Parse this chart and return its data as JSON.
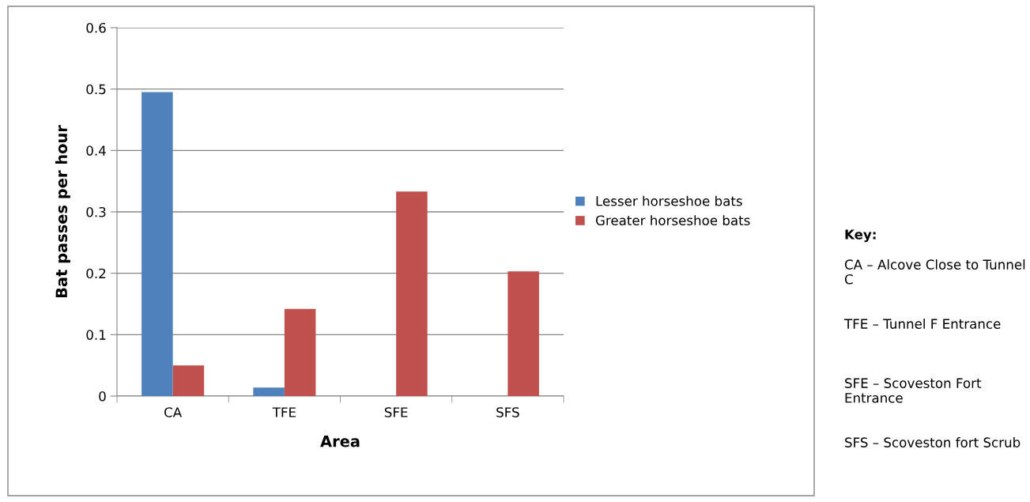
{
  "chart_data": {
    "type": "bar",
    "xlabel": "Area",
    "ylabel": "Bat passes per hour",
    "categories": [
      "CA",
      "TFE",
      "SFE",
      "SFS"
    ],
    "series": [
      {
        "name": "Lesser horseshoe bats",
        "color": "#4f81bd",
        "values": [
          0.495,
          0.014,
          0,
          0
        ]
      },
      {
        "name": "Greater horseshoe bats",
        "color": "#c0504d",
        "values": [
          0.05,
          0.142,
          0.333,
          0.203
        ]
      }
    ],
    "ylim": [
      0,
      0.6
    ],
    "yticks": [
      {
        "value": 0,
        "label": "0"
      },
      0.1,
      0.2,
      0.3,
      0.4,
      0.5,
      0.6
    ],
    "grid": "y",
    "legend": "right",
    "annotations": [
      "Key:",
      "CA – Alcove Close to Tunnel C",
      "TFE – Tunnel F Entrance",
      "SFE – Scoveston Fort Entrance",
      "SFS – Scoveston fort Scrub"
    ]
  }
}
